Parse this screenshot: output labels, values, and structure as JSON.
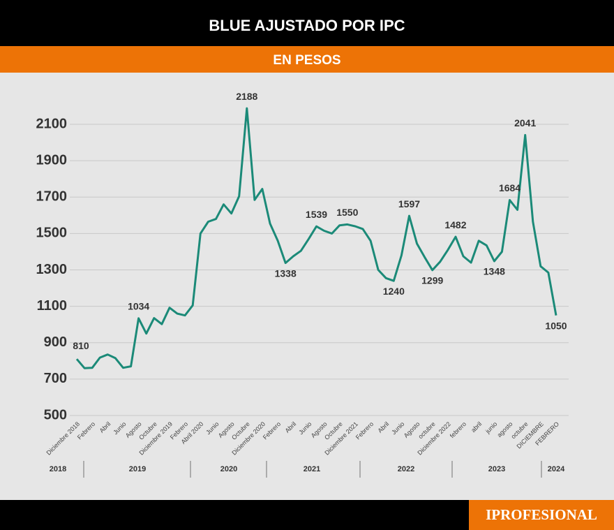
{
  "chart_data": {
    "type": "line",
    "title": "BLUE AJUSTADO POR IPC",
    "subtitle": "EN PESOS",
    "brand": "IPROFESIONAL",
    "categories": [
      "Diciembre 2018",
      null,
      "Febrero",
      null,
      "Abril",
      null,
      "Junio",
      null,
      "Agosto",
      null,
      "Octubre",
      null,
      "Diciembre 2019",
      null,
      "Febrero",
      null,
      "Abril 2020",
      null,
      "Junio",
      null,
      "Agosto",
      null,
      "Octubre",
      null,
      "Diciembre 2020",
      null,
      "Febrero",
      null,
      "Abril",
      null,
      "Junio",
      null,
      "Agosto",
      null,
      "Octubre",
      null,
      "Diciembre 2021",
      null,
      "Febrero",
      null,
      "Abril",
      null,
      "Junio",
      null,
      "Agosto",
      null,
      "octubre",
      null,
      "Diciembre 2022",
      null,
      "febrero",
      null,
      "abril",
      null,
      "junio",
      null,
      "agosto",
      null,
      "octubre",
      null,
      "DICIEMBRE",
      null,
      "FEBRERO"
    ],
    "years": [
      "2018",
      "2019",
      "2020",
      "2021",
      "2022",
      "2023",
      "2024"
    ],
    "series": [
      {
        "name": "Blue ajustado por IPC",
        "color": "#1b8a78",
        "values": [
          810,
          760,
          762,
          818,
          835,
          815,
          762,
          770,
          1034,
          950,
          1035,
          1002,
          1092,
          1060,
          1050,
          1105,
          1500,
          1565,
          1580,
          1660,
          1610,
          1705,
          2188,
          1685,
          1745,
          1555,
          1460,
          1338,
          1375,
          1405,
          1470,
          1539,
          1515,
          1500,
          1545,
          1550,
          1540,
          1525,
          1460,
          1300,
          1255,
          1240,
          1380,
          1597,
          1445,
          1370,
          1299,
          1345,
          1410,
          1482,
          1375,
          1340,
          1460,
          1435,
          1348,
          1400,
          1684,
          1630,
          2041,
          1565,
          1320,
          1285,
          1050
        ]
      }
    ],
    "labeled_points": [
      0,
      8,
      22,
      27,
      31,
      35,
      41,
      43,
      46,
      49,
      54,
      56,
      58,
      62
    ],
    "ylim": [
      500,
      2200
    ],
    "yticks": [
      500,
      700,
      900,
      1100,
      1300,
      1500,
      1700,
      1900,
      2100
    ],
    "grid": true
  }
}
